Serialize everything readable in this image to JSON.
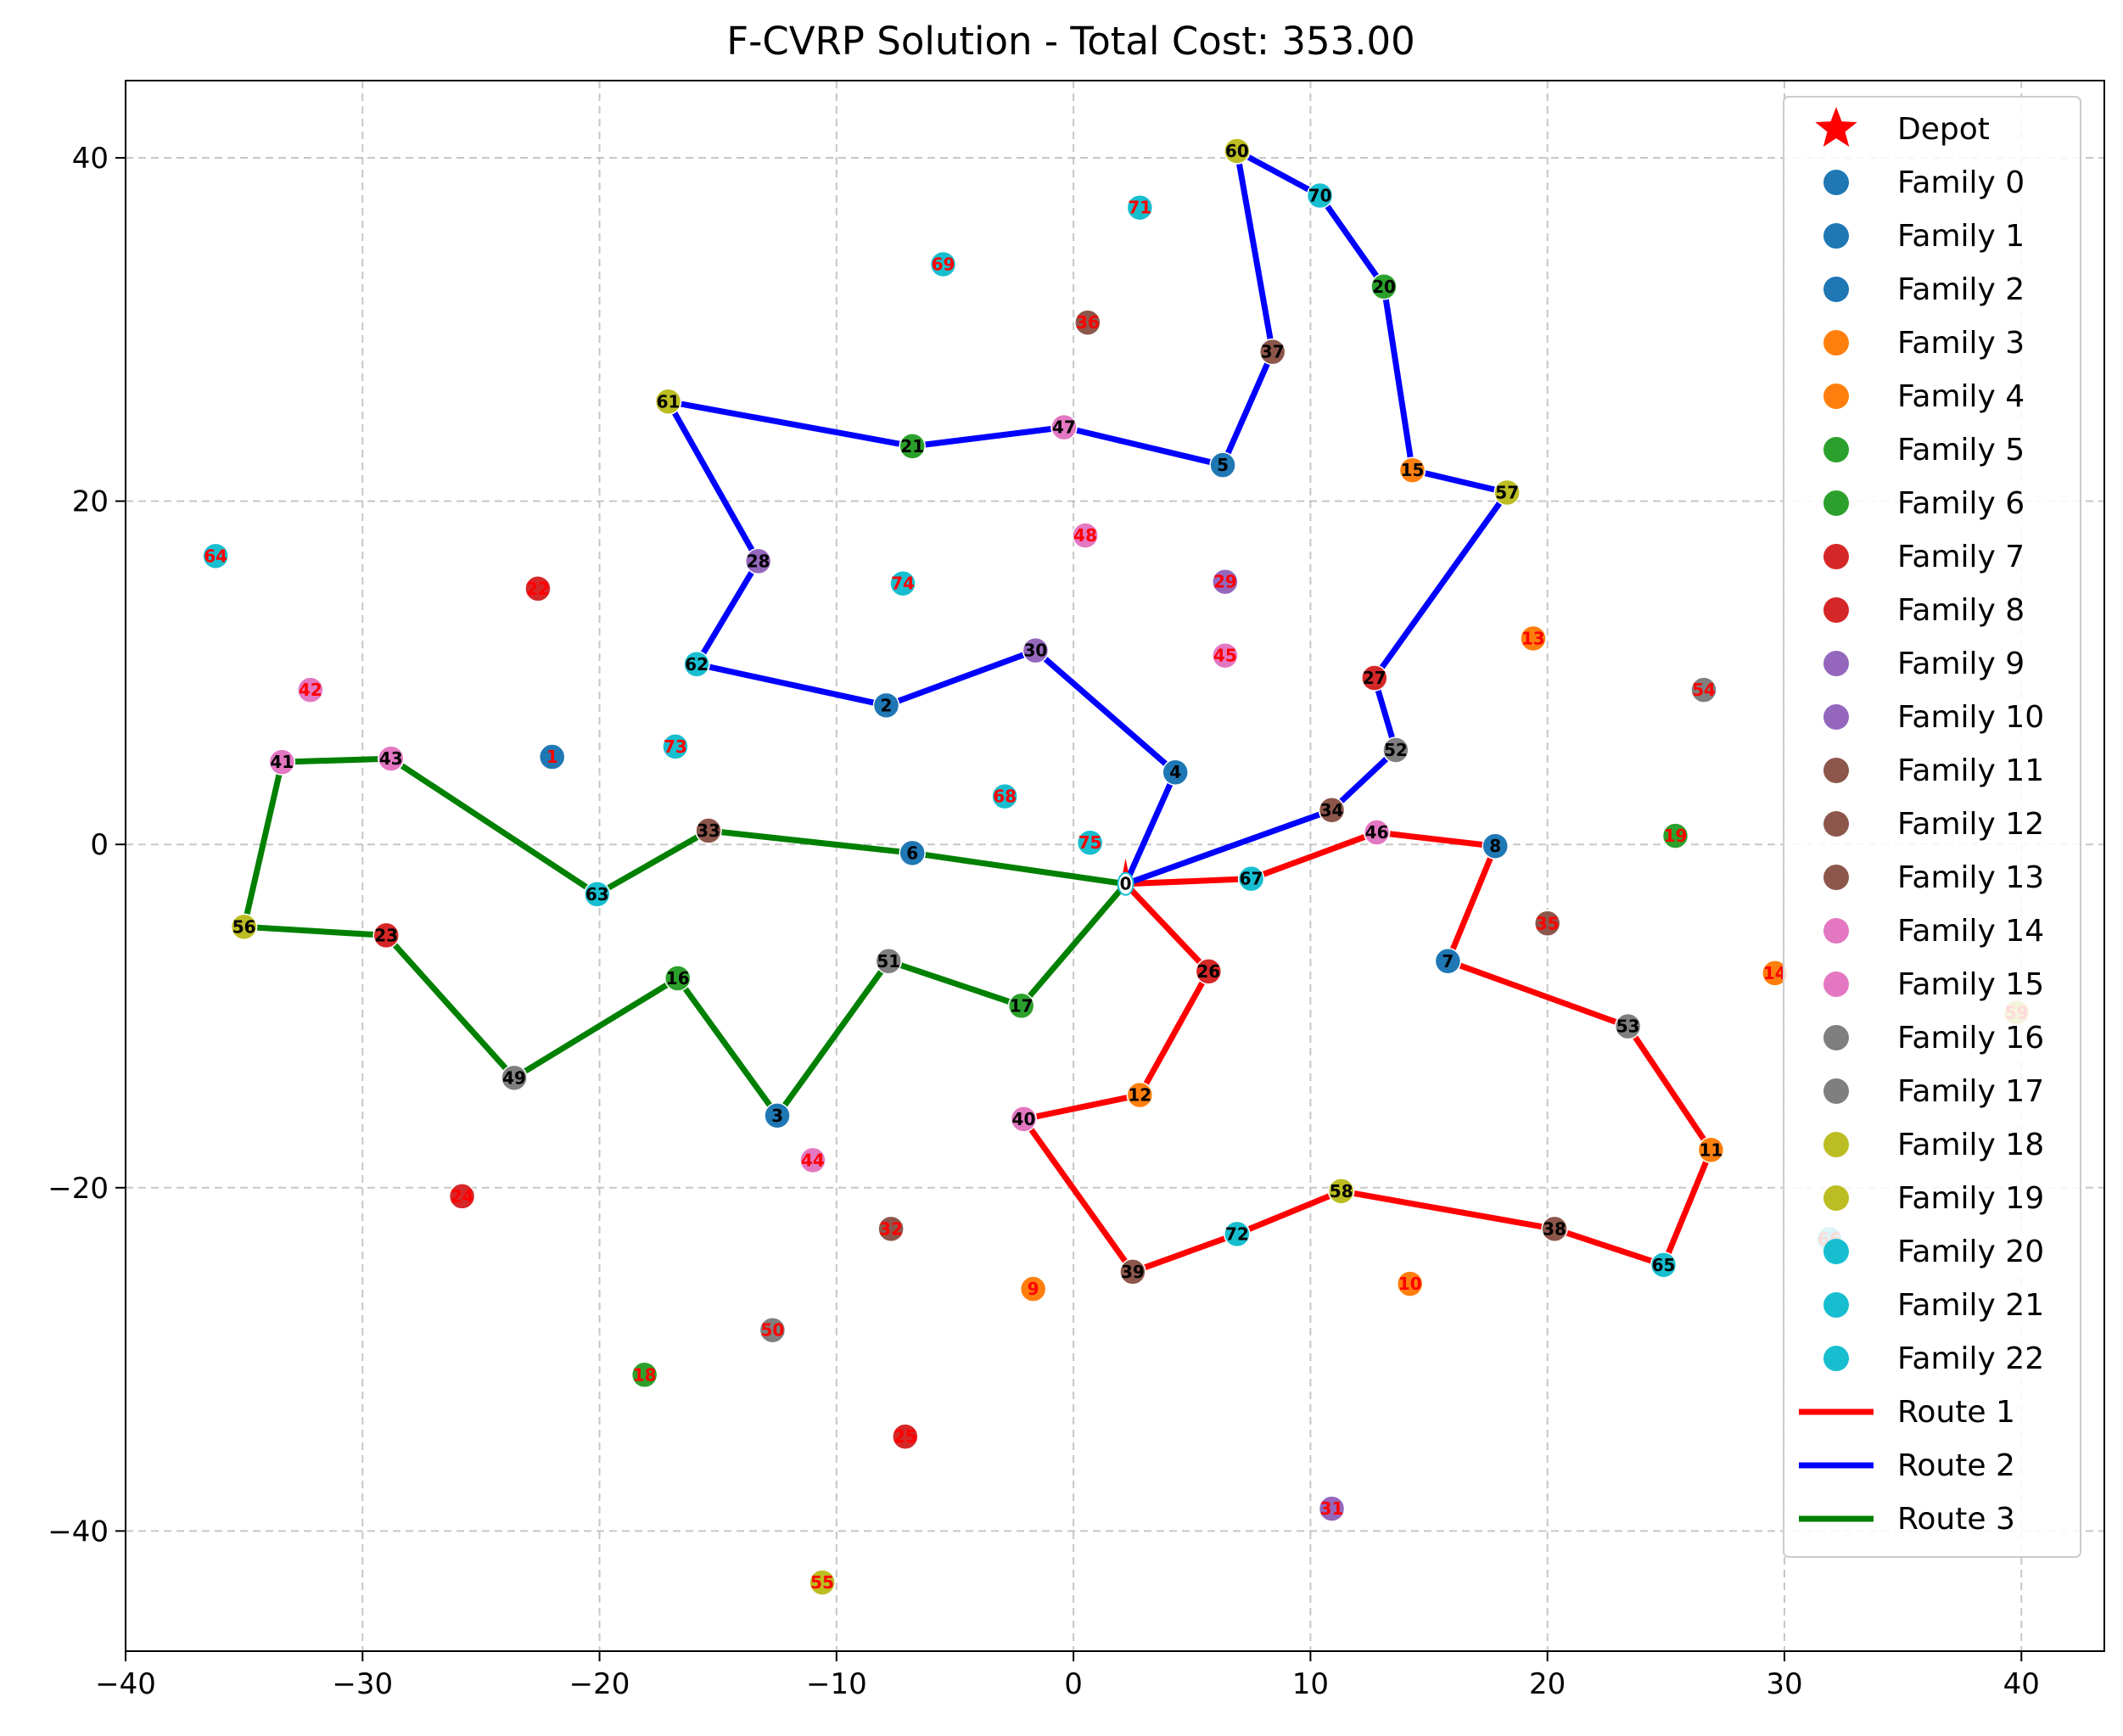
{
  "chart_data": {
    "type": "scatter",
    "title": "F-CVRP Solution - Total Cost: 353.00",
    "xlabel": "",
    "ylabel": "",
    "xlim": [
      -40,
      43.5
    ],
    "ylim": [
      -47,
      44.5
    ],
    "xticks": [
      -40,
      -30,
      -20,
      -10,
      0,
      10,
      20,
      30,
      40
    ],
    "yticks": [
      -40,
      -20,
      0,
      20,
      40
    ],
    "xtick_labels": [
      "−40",
      "−30",
      "−20",
      "−10",
      "0",
      "10",
      "20",
      "30",
      "40"
    ],
    "ytick_labels": [
      "−40",
      "−20",
      "0",
      "20",
      "40"
    ],
    "grid": true,
    "legend_position": "upper right",
    "colors": {
      "blue": "#1f77b4",
      "orange": "#ff7f0e",
      "green": "#2ca02c",
      "red": "#d62728",
      "purple": "#9467bd",
      "brown": "#8c564b",
      "pink": "#e377c2",
      "gray": "#7f7f7f",
      "olive": "#bcbd22",
      "cyan": "#17becf"
    },
    "depot": {
      "label": "0",
      "x": 2.2,
      "y": -2.3
    },
    "legend": [
      {
        "label": "Depot",
        "kind": "star",
        "color": "#ff0000"
      },
      {
        "label": "Family 0",
        "kind": "dot",
        "color": "#1f77b4"
      },
      {
        "label": "Family 1",
        "kind": "dot",
        "color": "#1f77b4"
      },
      {
        "label": "Family 2",
        "kind": "dot",
        "color": "#1f77b4"
      },
      {
        "label": "Family 3",
        "kind": "dot",
        "color": "#ff7f0e"
      },
      {
        "label": "Family 4",
        "kind": "dot",
        "color": "#ff7f0e"
      },
      {
        "label": "Family 5",
        "kind": "dot",
        "color": "#2ca02c"
      },
      {
        "label": "Family 6",
        "kind": "dot",
        "color": "#2ca02c"
      },
      {
        "label": "Family 7",
        "kind": "dot",
        "color": "#d62728"
      },
      {
        "label": "Family 8",
        "kind": "dot",
        "color": "#d62728"
      },
      {
        "label": "Family 9",
        "kind": "dot",
        "color": "#9467bd"
      },
      {
        "label": "Family 10",
        "kind": "dot",
        "color": "#9467bd"
      },
      {
        "label": "Family 11",
        "kind": "dot",
        "color": "#8c564b"
      },
      {
        "label": "Family 12",
        "kind": "dot",
        "color": "#8c564b"
      },
      {
        "label": "Family 13",
        "kind": "dot",
        "color": "#8c564b"
      },
      {
        "label": "Family 14",
        "kind": "dot",
        "color": "#e377c2"
      },
      {
        "label": "Family 15",
        "kind": "dot",
        "color": "#e377c2"
      },
      {
        "label": "Family 16",
        "kind": "dot",
        "color": "#7f7f7f"
      },
      {
        "label": "Family 17",
        "kind": "dot",
        "color": "#7f7f7f"
      },
      {
        "label": "Family 18",
        "kind": "dot",
        "color": "#bcbd22"
      },
      {
        "label": "Family 19",
        "kind": "dot",
        "color": "#bcbd22"
      },
      {
        "label": "Family 20",
        "kind": "dot",
        "color": "#17becf"
      },
      {
        "label": "Family 21",
        "kind": "dot",
        "color": "#17becf"
      },
      {
        "label": "Family 22",
        "kind": "dot",
        "color": "#17becf"
      },
      {
        "label": "Route 1",
        "kind": "line",
        "color": "#ff0000"
      },
      {
        "label": "Route 2",
        "kind": "line",
        "color": "#0000ff"
      },
      {
        "label": "Route 3",
        "kind": "line",
        "color": "#008000"
      }
    ],
    "nodes": [
      {
        "id": "1",
        "x": -22.0,
        "y": 5.1,
        "color": "#1f77b4",
        "visited": false
      },
      {
        "id": "2",
        "x": -7.9,
        "y": 8.1,
        "color": "#1f77b4",
        "visited": true
      },
      {
        "id": "3",
        "x": -12.5,
        "y": -15.8,
        "color": "#1f77b4",
        "visited": true
      },
      {
        "id": "4",
        "x": 4.3,
        "y": 4.2,
        "color": "#1f77b4",
        "visited": true
      },
      {
        "id": "5",
        "x": 6.3,
        "y": 22.1,
        "color": "#1f77b4",
        "visited": true
      },
      {
        "id": "6",
        "x": -6.8,
        "y": -0.5,
        "color": "#1f77b4",
        "visited": true
      },
      {
        "id": "7",
        "x": 15.8,
        "y": -6.8,
        "color": "#1f77b4",
        "visited": true
      },
      {
        "id": "8",
        "x": 17.8,
        "y": -0.1,
        "color": "#1f77b4",
        "visited": true
      },
      {
        "id": "9",
        "x": -1.7,
        "y": -25.9,
        "color": "#ff7f0e",
        "visited": false
      },
      {
        "id": "10",
        "x": 14.2,
        "y": -25.6,
        "color": "#ff7f0e",
        "visited": false
      },
      {
        "id": "11",
        "x": 26.9,
        "y": -17.8,
        "color": "#ff7f0e",
        "visited": true
      },
      {
        "id": "12",
        "x": 2.8,
        "y": -14.6,
        "color": "#ff7f0e",
        "visited": true
      },
      {
        "id": "13",
        "x": 19.4,
        "y": 12.0,
        "color": "#ff7f0e",
        "visited": false
      },
      {
        "id": "14",
        "x": 29.6,
        "y": -7.5,
        "color": "#ff7f0e",
        "visited": false
      },
      {
        "id": "15",
        "x": 14.3,
        "y": 21.8,
        "color": "#ff7f0e",
        "visited": true
      },
      {
        "id": "16",
        "x": -16.7,
        "y": -7.8,
        "color": "#2ca02c",
        "visited": true
      },
      {
        "id": "17",
        "x": -2.2,
        "y": -9.4,
        "color": "#2ca02c",
        "visited": true
      },
      {
        "id": "18",
        "x": -18.1,
        "y": -30.9,
        "color": "#2ca02c",
        "visited": false
      },
      {
        "id": "19",
        "x": 25.4,
        "y": 0.5,
        "color": "#2ca02c",
        "visited": false
      },
      {
        "id": "20",
        "x": 13.1,
        "y": 32.5,
        "color": "#2ca02c",
        "visited": true
      },
      {
        "id": "21",
        "x": -6.8,
        "y": 23.2,
        "color": "#2ca02c",
        "visited": true
      },
      {
        "id": "22",
        "x": -22.6,
        "y": 14.9,
        "color": "#d62728",
        "visited": false
      },
      {
        "id": "23",
        "x": -29.0,
        "y": -5.3,
        "color": "#d62728",
        "visited": true
      },
      {
        "id": "24",
        "x": -25.8,
        "y": -20.5,
        "color": "#d62728",
        "visited": false
      },
      {
        "id": "25",
        "x": -7.1,
        "y": -34.5,
        "color": "#d62728",
        "visited": false
      },
      {
        "id": "26",
        "x": 5.7,
        "y": -7.4,
        "color": "#d62728",
        "visited": true
      },
      {
        "id": "27",
        "x": 12.7,
        "y": 9.7,
        "color": "#d62728",
        "visited": true
      },
      {
        "id": "28",
        "x": -13.3,
        "y": 16.5,
        "color": "#9467bd",
        "visited": true
      },
      {
        "id": "29",
        "x": 6.4,
        "y": 15.3,
        "color": "#9467bd",
        "visited": false
      },
      {
        "id": "30",
        "x": -1.6,
        "y": 11.3,
        "color": "#9467bd",
        "visited": true
      },
      {
        "id": "31",
        "x": 10.9,
        "y": -38.7,
        "color": "#9467bd",
        "visited": false
      },
      {
        "id": "32",
        "x": -7.7,
        "y": -22.4,
        "color": "#8c564b",
        "visited": false
      },
      {
        "id": "33",
        "x": -15.4,
        "y": 0.8,
        "color": "#8c564b",
        "visited": true
      },
      {
        "id": "34",
        "x": 10.9,
        "y": 2.0,
        "color": "#8c564b",
        "visited": true
      },
      {
        "id": "35",
        "x": 20.0,
        "y": -4.6,
        "color": "#8c564b",
        "visited": false
      },
      {
        "id": "36",
        "x": 0.6,
        "y": 30.4,
        "color": "#8c564b",
        "visited": false
      },
      {
        "id": "37",
        "x": 8.4,
        "y": 28.7,
        "color": "#8c564b",
        "visited": true
      },
      {
        "id": "38",
        "x": 20.3,
        "y": -22.4,
        "color": "#8c564b",
        "visited": true
      },
      {
        "id": "39",
        "x": 2.5,
        "y": -24.9,
        "color": "#8c564b",
        "visited": true
      },
      {
        "id": "40",
        "x": -2.1,
        "y": -16.0,
        "color": "#e377c2",
        "visited": true
      },
      {
        "id": "41",
        "x": -33.4,
        "y": 4.8,
        "color": "#e377c2",
        "visited": true
      },
      {
        "id": "42",
        "x": -32.2,
        "y": 9.0,
        "color": "#e377c2",
        "visited": false
      },
      {
        "id": "43",
        "x": -28.8,
        "y": 5.0,
        "color": "#e377c2",
        "visited": true
      },
      {
        "id": "44",
        "x": -11.0,
        "y": -18.4,
        "color": "#e377c2",
        "visited": false
      },
      {
        "id": "45",
        "x": 6.4,
        "y": 11.0,
        "color": "#e377c2",
        "visited": false
      },
      {
        "id": "46",
        "x": 12.8,
        "y": 0.7,
        "color": "#e377c2",
        "visited": true
      },
      {
        "id": "47",
        "x": -0.4,
        "y": 24.3,
        "color": "#e377c2",
        "visited": true
      },
      {
        "id": "48",
        "x": 0.5,
        "y": 18.0,
        "color": "#e377c2",
        "visited": false
      },
      {
        "id": "49",
        "x": -23.6,
        "y": -13.6,
        "color": "#7f7f7f",
        "visited": true
      },
      {
        "id": "50",
        "x": -12.7,
        "y": -28.3,
        "color": "#7f7f7f",
        "visited": false
      },
      {
        "id": "51",
        "x": -7.8,
        "y": -6.8,
        "color": "#7f7f7f",
        "visited": true
      },
      {
        "id": "52",
        "x": 13.6,
        "y": 5.5,
        "color": "#7f7f7f",
        "visited": true
      },
      {
        "id": "53",
        "x": 23.4,
        "y": -10.6,
        "color": "#7f7f7f",
        "visited": true
      },
      {
        "id": "54",
        "x": 26.6,
        "y": 9.0,
        "color": "#7f7f7f",
        "visited": false
      },
      {
        "id": "55",
        "x": -10.6,
        "y": -43.0,
        "color": "#bcbd22",
        "visited": false
      },
      {
        "id": "56",
        "x": -35.0,
        "y": -4.8,
        "color": "#bcbd22",
        "visited": true
      },
      {
        "id": "57",
        "x": 18.3,
        "y": 20.5,
        "color": "#bcbd22",
        "visited": true
      },
      {
        "id": "58",
        "x": 11.3,
        "y": -20.2,
        "color": "#bcbd22",
        "visited": true
      },
      {
        "id": "59",
        "x": 39.8,
        "y": -9.8,
        "color": "#bcbd22",
        "visited": false
      },
      {
        "id": "60",
        "x": 6.9,
        "y": 40.4,
        "color": "#bcbd22",
        "visited": true
      },
      {
        "id": "61",
        "x": -17.1,
        "y": 25.8,
        "color": "#bcbd22",
        "visited": true
      },
      {
        "id": "62",
        "x": -15.9,
        "y": 10.5,
        "color": "#17becf",
        "visited": true
      },
      {
        "id": "63",
        "x": -20.1,
        "y": -2.9,
        "color": "#17becf",
        "visited": true
      },
      {
        "id": "64",
        "x": -36.2,
        "y": 16.8,
        "color": "#17becf",
        "visited": false
      },
      {
        "id": "65",
        "x": 24.9,
        "y": -24.5,
        "color": "#17becf",
        "visited": true
      },
      {
        "id": "66",
        "x": 31.9,
        "y": -23.0,
        "color": "#17becf",
        "visited": false
      },
      {
        "id": "67",
        "x": 7.5,
        "y": -2.0,
        "color": "#17becf",
        "visited": true
      },
      {
        "id": "68",
        "x": -2.9,
        "y": 2.8,
        "color": "#17becf",
        "visited": false
      },
      {
        "id": "69",
        "x": -5.5,
        "y": 33.8,
        "color": "#17becf",
        "visited": false
      },
      {
        "id": "70",
        "x": 10.4,
        "y": 37.8,
        "color": "#17becf",
        "visited": true
      },
      {
        "id": "71",
        "x": 2.8,
        "y": 37.1,
        "color": "#17becf",
        "visited": false
      },
      {
        "id": "72",
        "x": 6.9,
        "y": -22.7,
        "color": "#17becf",
        "visited": true
      },
      {
        "id": "73",
        "x": -16.8,
        "y": 5.7,
        "color": "#17becf",
        "visited": false
      },
      {
        "id": "74",
        "x": -7.2,
        "y": 15.2,
        "color": "#17becf",
        "visited": false
      },
      {
        "id": "75",
        "x": 0.7,
        "y": 0.1,
        "color": "#17becf",
        "visited": false
      }
    ],
    "routes": [
      {
        "name": "Route 1",
        "color": "#ff0000",
        "path": [
          "0",
          "67",
          "46",
          "8",
          "7",
          "53",
          "11",
          "65",
          "38",
          "58",
          "72",
          "39",
          "40",
          "12",
          "26",
          "0"
        ]
      },
      {
        "name": "Route 2",
        "color": "#0000ff",
        "path": [
          "0",
          "4",
          "30",
          "2",
          "62",
          "28",
          "61",
          "21",
          "47",
          "5",
          "37",
          "60",
          "70",
          "20",
          "15",
          "57",
          "27",
          "52",
          "34",
          "0"
        ]
      },
      {
        "name": "Route 3",
        "color": "#008000",
        "path": [
          "0",
          "6",
          "33",
          "63",
          "43",
          "41",
          "56",
          "23",
          "49",
          "16",
          "3",
          "51",
          "17",
          "0"
        ]
      }
    ]
  }
}
